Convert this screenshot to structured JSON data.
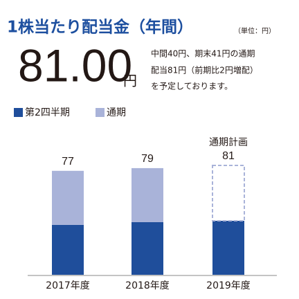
{
  "chart_data": {
    "type": "stacked-bar",
    "title": "1株当たり配当金（年間）",
    "unit": "（単位：円）",
    "headline_value": "81.00",
    "headline_unit": "円",
    "note": [
      "中間40円、期末41円の通期",
      "配当81円（前期比2円増配）",
      "を予定しております。"
    ],
    "categories": [
      "2017年度",
      "2018年度",
      "2019年度"
    ],
    "series": [
      {
        "name": "第2四半期",
        "color": "#1f4e9b",
        "values": [
          37,
          39,
          40
        ]
      },
      {
        "name": "通期",
        "color": "#a9b3d9",
        "values": [
          40,
          40,
          41
        ],
        "styles": [
          "solid",
          "solid",
          "dashed"
        ]
      }
    ],
    "totals": [
      77,
      79,
      81
    ],
    "annotation": "通期計画"
  }
}
